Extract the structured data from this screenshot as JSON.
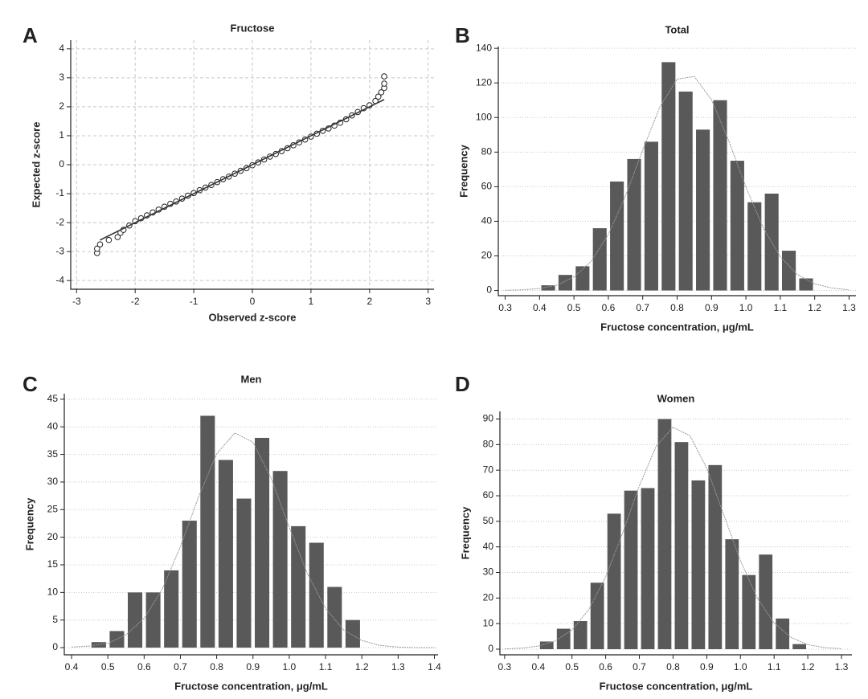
{
  "chart_data": [
    {
      "type": "scatter",
      "panel": "A",
      "title": "Fructose",
      "x_label": "Observed z-score",
      "y_label": "Expected z-score",
      "xlim": [
        -3.1,
        3.1
      ],
      "ylim": [
        -4.3,
        4.3
      ],
      "xticks": [
        -3,
        -2,
        -1,
        0,
        1,
        2,
        3
      ],
      "yticks": [
        -4,
        -3,
        -2,
        -1,
        0,
        1,
        2,
        3,
        4
      ],
      "grid": "both",
      "series": [
        {
          "type": "scatter",
          "color": "#222222",
          "x": [
            -2.65,
            -2.65,
            -2.6,
            -2.45,
            -2.3,
            -2.25,
            -2.2,
            -2.1,
            -2.0,
            -1.9,
            -1.8,
            -1.7,
            -1.6,
            -1.5,
            -1.4,
            -1.3,
            -1.2,
            -1.1,
            -1.0,
            -0.9,
            -0.8,
            -0.7,
            -0.6,
            -0.5,
            -0.4,
            -0.3,
            -0.2,
            -0.1,
            0,
            0.1,
            0.2,
            0.3,
            0.4,
            0.5,
            0.6,
            0.7,
            0.8,
            0.9,
            1.0,
            1.1,
            1.2,
            1.3,
            1.4,
            1.5,
            1.6,
            1.7,
            1.8,
            1.9,
            2.0,
            2.1,
            2.15,
            2.2,
            2.25,
            2.25,
            2.25
          ],
          "values": [
            -3.05,
            -2.9,
            -2.75,
            -2.6,
            -2.5,
            -2.35,
            -2.25,
            -2.1,
            -1.95,
            -1.85,
            -1.75,
            -1.65,
            -1.55,
            -1.45,
            -1.35,
            -1.27,
            -1.17,
            -1.07,
            -0.98,
            -0.88,
            -0.79,
            -0.7,
            -0.6,
            -0.5,
            -0.41,
            -0.31,
            -0.21,
            -0.12,
            -0.02,
            0.08,
            0.18,
            0.28,
            0.37,
            0.47,
            0.57,
            0.67,
            0.77,
            0.87,
            0.97,
            1.07,
            1.17,
            1.25,
            1.35,
            1.45,
            1.57,
            1.7,
            1.82,
            1.95,
            2.05,
            2.2,
            2.35,
            2.5,
            2.65,
            2.8,
            3.05
          ]
        },
        {
          "type": "line",
          "color": "#333333",
          "x": [
            -2.6,
            2.25
          ],
          "values": [
            -2.6,
            2.25
          ]
        }
      ]
    },
    {
      "type": "histogram",
      "panel": "B",
      "title": "Total",
      "x_label": "Fructose concentration, μg/mL",
      "y_label": "Frequency",
      "xlim": [
        0.28,
        1.32
      ],
      "ylim": [
        -3,
        141
      ],
      "xticks": [
        0.3,
        0.4,
        0.5,
        0.6,
        0.7,
        0.8,
        0.9,
        {
          "value": 1,
          "label": "1.0"
        },
        1.1,
        1.2,
        1.3
      ],
      "yticks": [
        0,
        20,
        40,
        60,
        80,
        100,
        120,
        140
      ],
      "grid": "y",
      "color": "#595959",
      "bins": [
        0.4,
        0.45,
        0.5,
        0.55,
        0.6,
        0.65,
        0.7,
        0.75,
        0.8,
        0.85,
        0.9,
        0.95,
        1.0,
        1.05,
        1.1,
        1.15,
        1.2
      ],
      "values": [
        3,
        9,
        14,
        36,
        63,
        76,
        86,
        132,
        115,
        93,
        110,
        75,
        51,
        56,
        23,
        7
      ],
      "curve": {
        "color": "#999999",
        "x": [
          0.3,
          0.35,
          0.4,
          0.45,
          0.5,
          0.55,
          0.6,
          0.65,
          0.7,
          0.75,
          0.8,
          0.85,
          0.9,
          0.95,
          1.0,
          1.05,
          1.1,
          1.15,
          1.2,
          1.25,
          1.3
        ],
        "values": [
          0.1,
          0.4,
          1.1,
          3.1,
          7.8,
          16.9,
          32.4,
          54.7,
          81.2,
          106.2,
          122.2,
          123.7,
          110.3,
          86.6,
          59.8,
          36.4,
          19.5,
          9.2,
          3.8,
          1.4,
          0.4
        ]
      }
    },
    {
      "type": "histogram",
      "panel": "C",
      "title": "Men",
      "x_label": "Fructose concentration, μg/mL",
      "y_label": "Frequency",
      "xlim": [
        0.38,
        1.41
      ],
      "ylim": [
        -1.3,
        46
      ],
      "xticks": [
        0.4,
        0.5,
        0.6,
        0.7,
        0.8,
        0.9,
        {
          "value": 1,
          "label": "1.0"
        },
        1.1,
        1.2,
        1.3,
        1.4
      ],
      "yticks": [
        0,
        5,
        10,
        15,
        20,
        25,
        30,
        35,
        40,
        45
      ],
      "grid": "y",
      "color": "#595959",
      "bins": [
        0.45,
        0.5,
        0.55,
        0.6,
        0.65,
        0.7,
        0.75,
        0.8,
        0.85,
        0.9,
        0.95,
        1.0,
        1.05,
        1.1,
        1.15,
        1.2
      ],
      "values": [
        1,
        3,
        10,
        10,
        14,
        23,
        42,
        34,
        27,
        38,
        32,
        22,
        19,
        11,
        5
      ],
      "curve": {
        "color": "#999999",
        "x": [
          0.4,
          0.45,
          0.5,
          0.55,
          0.6,
          0.65,
          0.7,
          0.75,
          0.8,
          0.85,
          0.9,
          0.95,
          1.0,
          1.05,
          1.1,
          1.15,
          1.2,
          1.25,
          1.3,
          1.35,
          1.4
        ],
        "values": [
          0.1,
          0.3,
          0.8,
          2.3,
          5.3,
          10.6,
          18.3,
          27.3,
          35.1,
          38.9,
          37.2,
          30.7,
          21.8,
          13.4,
          7.1,
          3.2,
          1.3,
          0.4,
          0.1,
          0,
          0
        ]
      }
    },
    {
      "type": "histogram",
      "panel": "D",
      "title": "Women",
      "x_label": "Fructose concentration, μg/mL",
      "y_label": "Frequency",
      "xlim": [
        0.286,
        1.331
      ],
      "ylim": [
        -2.2,
        93
      ],
      "xticks": [
        0.3,
        0.4,
        0.5,
        0.6,
        0.7,
        0.8,
        0.9,
        {
          "value": 1,
          "label": "1.0"
        },
        1.1,
        1.2,
        1.3
      ],
      "yticks": [
        0,
        10,
        20,
        30,
        40,
        50,
        60,
        70,
        80,
        90
      ],
      "grid": "y",
      "color": "#595959",
      "bins": [
        0.4,
        0.45,
        0.5,
        0.55,
        0.6,
        0.65,
        0.7,
        0.75,
        0.8,
        0.85,
        0.9,
        0.95,
        1.0,
        1.05,
        1.1,
        1.15,
        1.2
      ],
      "values": [
        3,
        8,
        11,
        26,
        53,
        62,
        63,
        90,
        81,
        66,
        72,
        43,
        29,
        37,
        12,
        2
      ],
      "curve": {
        "color": "#999999",
        "x": [
          0.3,
          0.35,
          0.4,
          0.45,
          0.5,
          0.55,
          0.6,
          0.65,
          0.7,
          0.75,
          0.8,
          0.85,
          0.9,
          0.95,
          1.0,
          1.05,
          1.1,
          1.15,
          1.2,
          1.25,
          1.3
        ],
        "values": [
          0.1,
          0.4,
          1.2,
          3.2,
          7.5,
          15.5,
          28.3,
          45.3,
          63.9,
          79.4,
          86.8,
          83.5,
          70.8,
          52.8,
          34.6,
          20.0,
          10.2,
          4.6,
          1.8,
          0.6,
          0.2
        ]
      }
    }
  ]
}
